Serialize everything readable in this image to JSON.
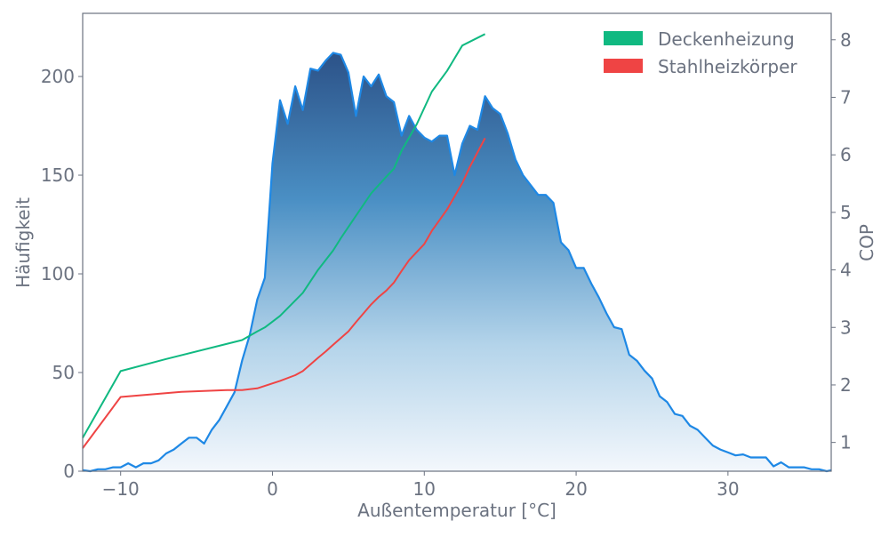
{
  "chart_data": {
    "type": "area",
    "title": "",
    "xlabel": "Außentemperatur [°C]",
    "ylabel": "Häufigkeit",
    "y2label": "COP",
    "xlim": [
      -12.5,
      36.8
    ],
    "ylim": [
      0,
      232
    ],
    "y2lim": [
      0.5,
      8.46
    ],
    "xticks": [
      -10,
      0,
      10,
      20,
      30
    ],
    "xtick_labels": [
      "−10",
      "0",
      "10",
      "20",
      "30"
    ],
    "yticks": [
      0,
      50,
      100,
      150,
      200
    ],
    "y2ticks": [
      1,
      2,
      3,
      4,
      5,
      6,
      7,
      8
    ],
    "grid": false,
    "legend_position": "top-right",
    "colors": {
      "histogram_line": "#1e88e5",
      "fill_top": "#2c5288",
      "fill_bottom": "#f3f7fc",
      "deckenheizung": "#10b981",
      "stahlheizkoerper": "#ef4444",
      "axis": "#6b7280"
    },
    "histogram": {
      "name": "Häufigkeit",
      "x": [
        -12.5,
        -12,
        -11.5,
        -11,
        -10.5,
        -10,
        -9.5,
        -9,
        -8.5,
        -8,
        -7.5,
        -7,
        -6.5,
        -6,
        -5.5,
        -5,
        -4.5,
        -4,
        -3.5,
        -3,
        -2.5,
        -2,
        -1.5,
        -1,
        -0.5,
        0,
        0.5,
        1,
        1.5,
        2,
        2.5,
        3,
        3.5,
        4,
        4.5,
        5,
        5.5,
        6,
        6.5,
        7,
        7.5,
        8,
        8.5,
        9,
        9.5,
        10,
        10.5,
        11,
        11.5,
        12,
        12.5,
        13,
        13.5,
        14,
        14.5,
        15,
        15.5,
        16,
        16.5,
        17,
        17.5,
        18,
        18.5,
        19,
        19.5,
        20,
        20.5,
        21,
        21.5,
        22,
        22.5,
        23,
        23.5,
        24,
        24.5,
        25,
        25.5,
        26,
        26.5,
        27,
        27.5,
        28,
        28.5,
        29,
        29.5,
        30,
        30.5,
        31,
        31.5,
        32,
        32.5,
        33,
        33.5,
        34,
        34.5,
        35,
        35.5,
        36,
        36.5,
        36.8
      ],
      "values": [
        0.5,
        0,
        1,
        1,
        2,
        2,
        4,
        2,
        4,
        4,
        5.5,
        9,
        11,
        14,
        17,
        17,
        14,
        21,
        26,
        33,
        40,
        56,
        69,
        87,
        98,
        156,
        188,
        176,
        195,
        183,
        204,
        203,
        208,
        212,
        211,
        202,
        180,
        200,
        195,
        201,
        190,
        187,
        170,
        180,
        173,
        169,
        167,
        170,
        170,
        150,
        166,
        175,
        173,
        190,
        184,
        181,
        171,
        158,
        150,
        145,
        140,
        140,
        136,
        116,
        112,
        103,
        103,
        95,
        88,
        80,
        73,
        72,
        59,
        56,
        51,
        47,
        38,
        35,
        29,
        28,
        23,
        21,
        17,
        13,
        11,
        9.5,
        8,
        8.5,
        7,
        7,
        7,
        2.5,
        4.5,
        2,
        2,
        2,
        1,
        1,
        0,
        0.5
      ]
    },
    "series": [
      {
        "name": "Deckenheizung",
        "axis": "right",
        "x": [
          -12.5,
          -10,
          -7,
          -2,
          -1,
          -0.5,
          0.5,
          2,
          3,
          4,
          4.5,
          5.5,
          6.5,
          7.5,
          8,
          8.5,
          9.5,
          10.5,
          11.5,
          12.5,
          14
        ],
        "values": [
          1.08,
          2.24,
          2.45,
          2.78,
          2.93,
          3.0,
          3.2,
          3.6,
          4.0,
          4.34,
          4.55,
          4.94,
          5.33,
          5.62,
          5.76,
          6.07,
          6.53,
          7.1,
          7.46,
          7.9,
          8.1
        ]
      },
      {
        "name": "Stahlheizkörper",
        "axis": "right",
        "x": [
          -12.5,
          -10,
          -6,
          -3,
          -2,
          -1,
          0.5,
          1.5,
          2,
          3,
          3.5,
          4,
          5,
          5.5,
          6.5,
          7,
          7.5,
          8,
          8.5,
          9,
          10,
          10.5,
          11.5,
          12.5,
          13,
          14
        ],
        "values": [
          0.9,
          1.79,
          1.88,
          1.91,
          1.91,
          1.94,
          2.07,
          2.17,
          2.24,
          2.47,
          2.58,
          2.7,
          2.93,
          3.09,
          3.4,
          3.53,
          3.64,
          3.78,
          3.98,
          4.17,
          4.45,
          4.68,
          5.05,
          5.51,
          5.79,
          6.29
        ]
      }
    ]
  }
}
